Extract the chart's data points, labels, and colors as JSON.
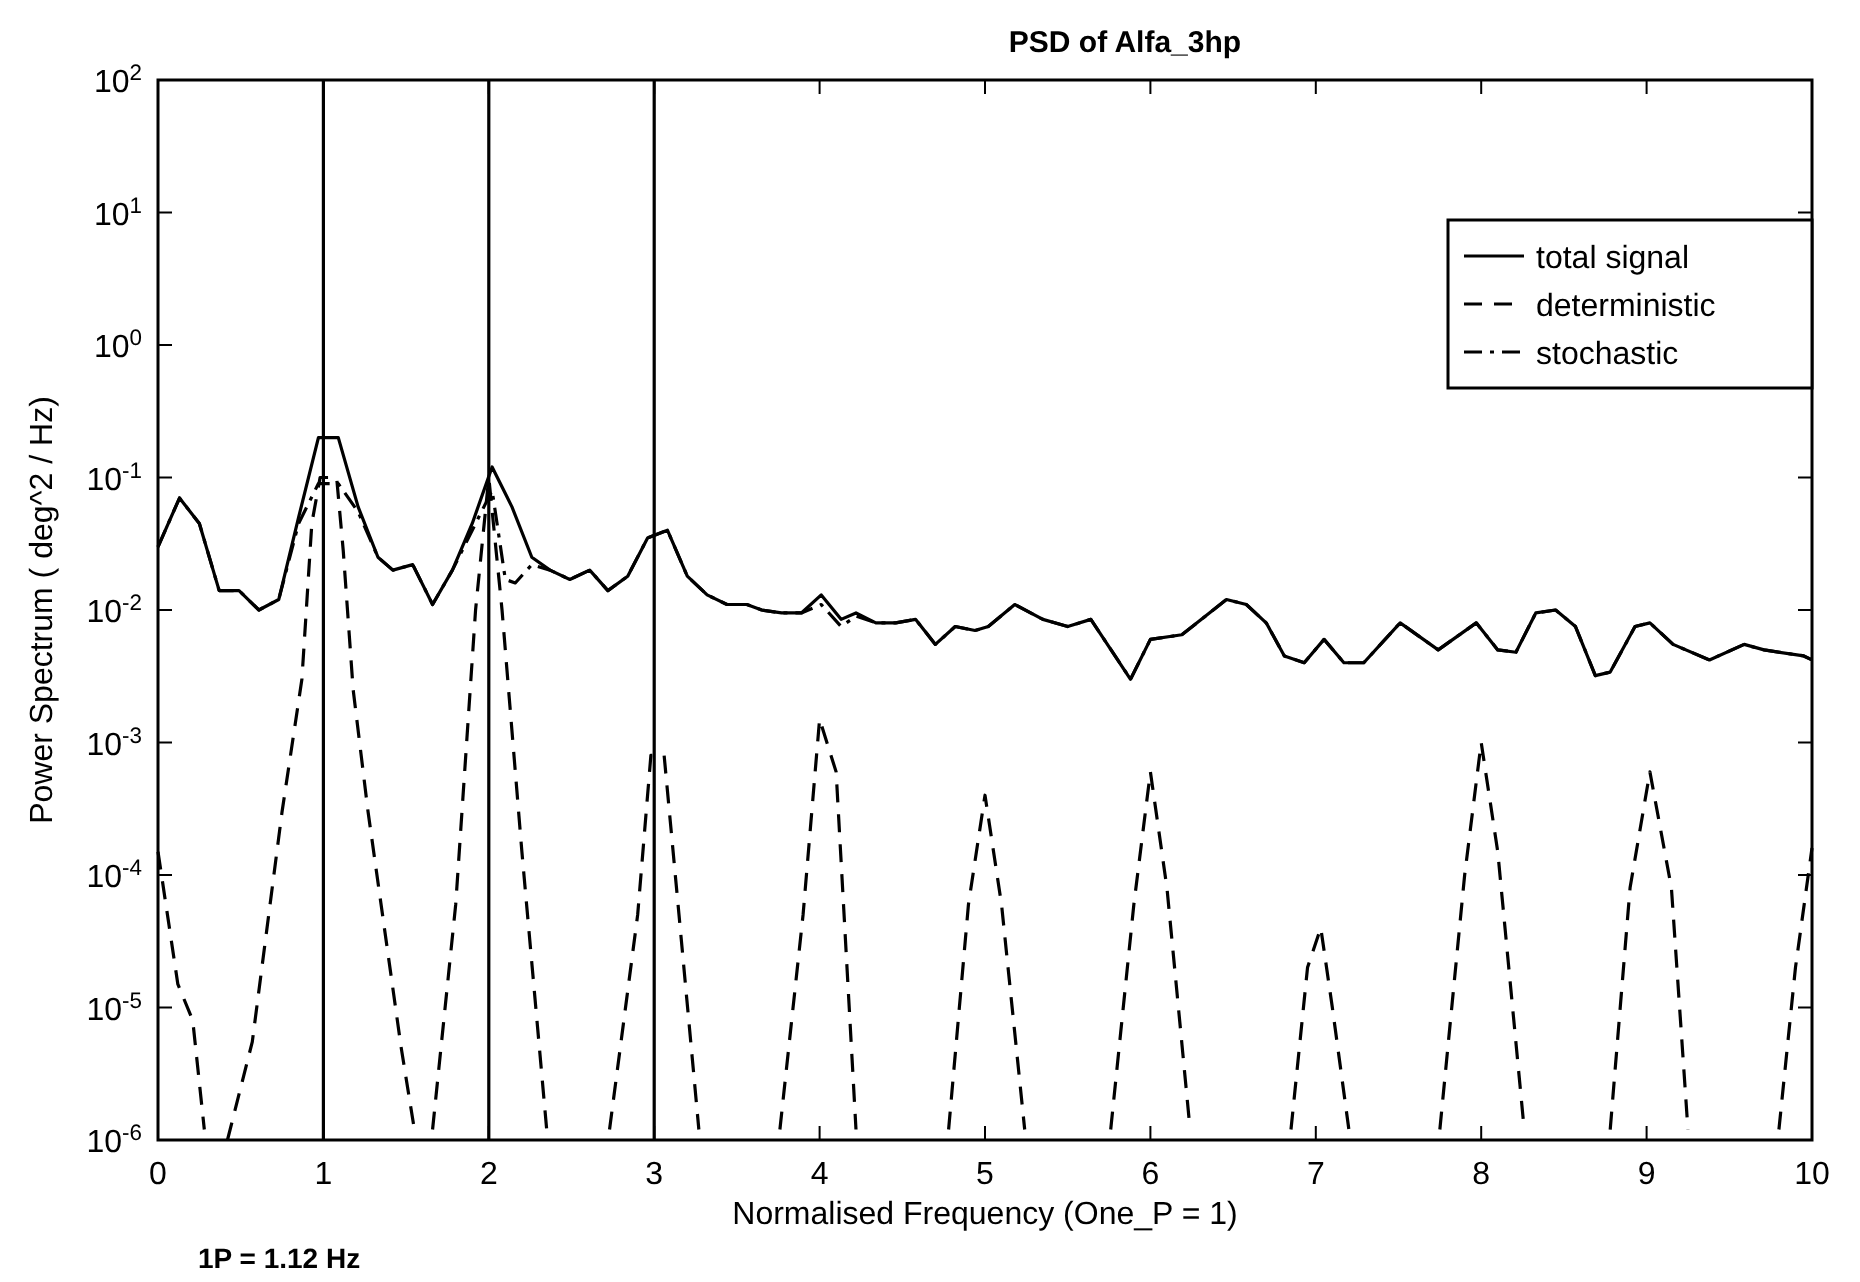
{
  "chart_data": {
    "type": "line",
    "title": "PSD of Alfa_3hp",
    "xlabel": "Normalised Frequency  (One_P = 1)",
    "ylabel": "Power Spectrum  ( deg^2 / Hz)",
    "annotations": [
      "1P = 1.12 Hz"
    ],
    "log": "y",
    "grid": false,
    "legend": "top right",
    "xlim": [
      0,
      10
    ],
    "ylim": [
      1e-06,
      100
    ],
    "xticks": [
      0,
      1,
      2,
      3,
      4,
      5,
      6,
      7,
      8,
      9,
      10
    ],
    "yticks": [
      {
        "value": 1e-06,
        "label": "10$^{-6}$"
      },
      {
        "value": 1e-05,
        "label": "10$^{-5}$"
      },
      {
        "value": 0.0001,
        "label": "10$^{-4}$"
      },
      {
        "value": 0.001,
        "label": "10$^{-3}$"
      },
      {
        "value": 0.01,
        "label": "10$^{-2}$"
      },
      {
        "value": 0.1,
        "label": "10$^{-1}$"
      },
      {
        "value": 1,
        "label": "10$^{0}$"
      },
      {
        "value": 10,
        "label": "10$^{1}$"
      },
      {
        "value": 100,
        "label": "10$^{2}$"
      }
    ],
    "ref_lines": [
      {
        "axis": "x",
        "value": 1,
        "color": "#000000"
      },
      {
        "axis": "x",
        "value": 2,
        "color": "#000000"
      },
      {
        "axis": "x",
        "value": 3,
        "color": "#000000"
      }
    ],
    "series": [
      {
        "name": "total signal",
        "color": "#000000",
        "line_style": "solid",
        "x": [
          0,
          0.13,
          0.25,
          0.37,
          0.49,
          0.61,
          0.73,
          0.85,
          0.97,
          1.09,
          1.21,
          1.33,
          1.42,
          1.54,
          1.66,
          1.78,
          1.9,
          2.02,
          2.14,
          2.26,
          2.37,
          2.49,
          2.61,
          2.72,
          2.84,
          2.96,
          3.08,
          3.2,
          3.32,
          3.44,
          3.56,
          3.65,
          3.77,
          3.89,
          4.01,
          4.13,
          4.22,
          4.34,
          4.46,
          4.58,
          4.7,
          4.82,
          4.94,
          5.02,
          5.18,
          5.35,
          5.5,
          5.64,
          5.88,
          6,
          6.19,
          6.46,
          6.58,
          6.7,
          6.81,
          6.93,
          7.05,
          7.17,
          7.29,
          7.51,
          7.74,
          7.97,
          8.1,
          8.21,
          8.33,
          8.45,
          8.57,
          8.69,
          8.78,
          8.93,
          9.02,
          9.16,
          9.38,
          9.59,
          9.71,
          9.95,
          10
        ],
        "values": [
          0.03,
          0.07,
          0.045,
          0.014,
          0.014,
          0.01,
          0.012,
          0.05,
          0.2,
          0.2,
          0.06,
          0.025,
          0.02,
          0.022,
          0.011,
          0.02,
          0.045,
          0.12,
          0.06,
          0.025,
          0.02,
          0.017,
          0.02,
          0.014,
          0.018,
          0.035,
          0.04,
          0.018,
          0.013,
          0.011,
          0.011,
          0.01,
          0.0095,
          0.0095,
          0.013,
          0.0085,
          0.0095,
          0.008,
          0.008,
          0.0085,
          0.0055,
          0.0075,
          0.007,
          0.0075,
          0.011,
          0.0085,
          0.0075,
          0.0085,
          0.003,
          0.006,
          0.0065,
          0.012,
          0.011,
          0.008,
          0.0045,
          0.004,
          0.006,
          0.004,
          0.004,
          0.008,
          0.005,
          0.008,
          0.005,
          0.0048,
          0.0095,
          0.01,
          0.0075,
          0.0032,
          0.0034,
          0.0075,
          0.008,
          0.0055,
          0.0042,
          0.0055,
          0.005,
          0.0045,
          0.0042
        ]
      },
      {
        "name": "deterministic",
        "color": "#000000",
        "line_style": "dashed",
        "x": [
          0,
          0.12,
          0.21,
          0.28,
          0.35,
          0.42,
          0.57,
          0.75,
          0.87,
          0.93,
          0.98,
          1.08,
          1.12,
          1.18,
          1.27,
          1.47,
          1.55,
          1.6,
          1.66,
          1.8,
          1.92,
          2.0,
          2.08,
          2.2,
          2.35,
          2.45,
          2.73,
          2.9,
          2.98,
          3.06,
          3.15,
          3.27,
          3.5,
          3.76,
          3.9,
          4.0,
          4.1,
          4.22,
          4.5,
          4.78,
          4.9,
          5.0,
          5.1,
          5.24,
          5.5,
          5.76,
          5.9,
          6.0,
          6.1,
          6.24,
          6.5,
          6.85,
          6.95,
          7.03,
          7.1,
          7.2,
          7.5,
          7.75,
          7.9,
          8.0,
          8.1,
          8.26,
          8.5,
          8.78,
          8.9,
          9.02,
          9.15,
          9.25,
          9.5,
          9.8,
          9.9,
          10
        ],
        "values": [
          0.00015,
          1.5e-05,
          8e-06,
          1.2e-06,
          null,
          1e-06,
          5.5e-06,
          0.0003,
          0.003,
          0.045,
          0.1,
          0.1,
          0.028,
          0.0025,
          0.0003,
          5e-06,
          1.2e-06,
          null,
          1.2e-06,
          6e-05,
          0.01,
          0.1,
          0.01,
          0.00015,
          1.2e-06,
          null,
          1.2e-06,
          5e-05,
          0.0008,
          0.0008,
          5e-05,
          1.2e-06,
          null,
          1.2e-06,
          5e-05,
          0.0015,
          0.0006,
          1.2e-06,
          null,
          1.2e-06,
          6e-05,
          0.0004,
          6e-05,
          1.2e-06,
          null,
          1.2e-06,
          6e-05,
          0.0006,
          8e-05,
          1.2e-06,
          null,
          1.2e-06,
          2e-05,
          4e-05,
          1e-05,
          1.2e-06,
          null,
          1.2e-06,
          0.0001,
          0.001,
          0.00015,
          1.2e-06,
          null,
          1.2e-06,
          8e-05,
          0.0006,
          8e-05,
          1.2e-06,
          null,
          1.2e-06,
          2e-05,
          0.00016
        ]
      },
      {
        "name": "stochastic",
        "color": "#000000",
        "line_style": "dashdot",
        "x": [
          0,
          0.13,
          0.25,
          0.37,
          0.49,
          0.61,
          0.73,
          0.85,
          0.97,
          1.09,
          1.21,
          1.33,
          1.42,
          1.54,
          1.66,
          1.78,
          1.9,
          2.02,
          2.1,
          2.16,
          2.26,
          2.37,
          2.49,
          2.61,
          2.72,
          2.84,
          2.96,
          3.08,
          3.2,
          3.32,
          3.44,
          3.56,
          3.65,
          3.77,
          3.89,
          4.01,
          4.13,
          4.22,
          4.34,
          4.46,
          4.58,
          4.7,
          4.82,
          4.94,
          5.02,
          5.18,
          5.35,
          5.5,
          5.64,
          5.88,
          6,
          6.19,
          6.46,
          6.58,
          6.7,
          6.81,
          6.93,
          7.05,
          7.17,
          7.29,
          7.51,
          7.74,
          7.97,
          8.1,
          8.21,
          8.33,
          8.45,
          8.57,
          8.69,
          8.78,
          8.93,
          9.02,
          9.16,
          9.38,
          9.59,
          9.71,
          9.95,
          10
        ],
        "values": [
          0.03,
          0.07,
          0.045,
          0.014,
          0.014,
          0.01,
          0.012,
          0.045,
          0.09,
          0.09,
          0.055,
          0.025,
          0.02,
          0.022,
          0.011,
          0.02,
          0.04,
          0.08,
          0.017,
          0.016,
          0.022,
          0.02,
          0.017,
          0.02,
          0.014,
          0.018,
          0.035,
          0.04,
          0.018,
          0.013,
          0.011,
          0.011,
          0.01,
          0.0095,
          0.0095,
          0.011,
          0.0075,
          0.009,
          0.008,
          0.008,
          0.0085,
          0.0055,
          0.0075,
          0.007,
          0.0075,
          0.011,
          0.0085,
          0.0075,
          0.0085,
          0.003,
          0.006,
          0.0065,
          0.012,
          0.011,
          0.008,
          0.0045,
          0.004,
          0.006,
          0.004,
          0.004,
          0.008,
          0.005,
          0.008,
          0.005,
          0.0048,
          0.0095,
          0.01,
          0.0075,
          0.0032,
          0.0034,
          0.0075,
          0.008,
          0.0055,
          0.0042,
          0.0055,
          0.005,
          0.0045,
          0.0042
        ]
      }
    ]
  }
}
